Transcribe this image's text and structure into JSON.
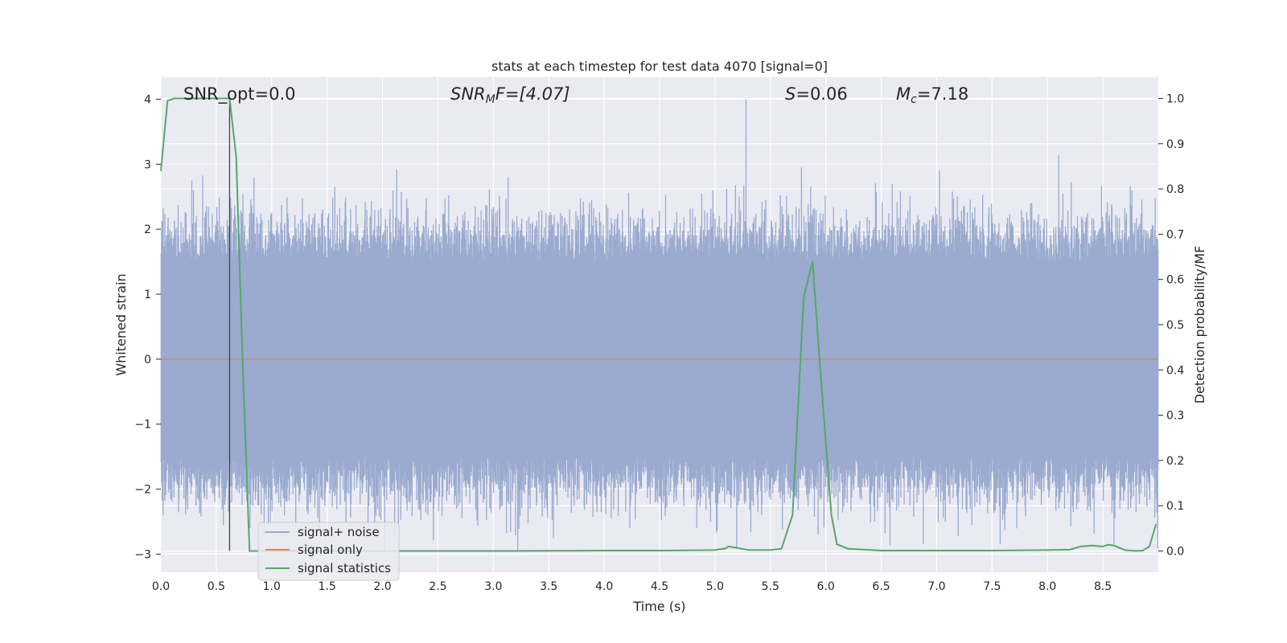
{
  "chart_data": {
    "type": "line",
    "title": "stats at each timestep for test data 4070 [signal=0]",
    "xlabel": "Time (s)",
    "ylabel": "Whitened strain",
    "y2label": "Detection probability/MF",
    "xlim": [
      0.0,
      9.0
    ],
    "ylim": [
      -3.28,
      4.34
    ],
    "y2lim": [
      -0.047,
      1.047
    ],
    "x_ticks": [
      0.0,
      0.5,
      1.0,
      1.5,
      2.0,
      2.5,
      3.0,
      3.5,
      4.0,
      4.5,
      5.0,
      5.5,
      6.0,
      6.5,
      7.0,
      7.5,
      8.0,
      8.5
    ],
    "x_tick_labels": [
      "0.0",
      "0.5",
      "1.0",
      "1.5",
      "2.0",
      "2.5",
      "3.0",
      "3.5",
      "4.0",
      "4.5",
      "5.0",
      "5.5",
      "6.0",
      "6.5",
      "7.0",
      "7.5",
      "8.0",
      "8.5"
    ],
    "y_ticks": [
      -3,
      -2,
      -1,
      0,
      1,
      2,
      3,
      4
    ],
    "y_tick_labels": [
      "−3",
      "−2",
      "−1",
      "0",
      "1",
      "2",
      "3",
      "4"
    ],
    "y2_ticks": [
      0.0,
      0.1,
      0.2,
      0.3,
      0.4,
      0.5,
      0.6,
      0.7,
      0.8,
      0.9,
      1.0
    ],
    "y2_tick_labels": [
      "0.0",
      "0.1",
      "0.2",
      "0.3",
      "0.4",
      "0.5",
      "0.6",
      "0.7",
      "0.8",
      "0.9",
      "1.0"
    ],
    "grid": true,
    "legend_position": "lower-left",
    "annotations": {
      "snr_opt": "SNR_opt=0.0",
      "snr_mf_sym": "SNR",
      "snr_mf_sub": "M",
      "snr_mf_rest": "F=[4.07]",
      "s_sym": "S",
      "s_rest": "=0.06",
      "mc_sym": "M",
      "mc_sub": "c",
      "mc_rest": "=7.18"
    },
    "marker_line_x": 0.62,
    "series": [
      {
        "name": "signal+ noise",
        "color": "#9aabcf",
        "envelope_typical": 1.5,
        "notable_spikes": [
          {
            "x": 0.61,
            "y": -2.35
          },
          {
            "x": 0.62,
            "y": 0.8
          },
          {
            "x": 0.84,
            "y": 2.8
          },
          {
            "x": 3.22,
            "y": -2.95
          },
          {
            "x": 4.98,
            "y": 2.6
          },
          {
            "x": 5.28,
            "y": 4.0
          },
          {
            "x": 5.78,
            "y": 2.95
          },
          {
            "x": 6.6,
            "y": 2.7
          },
          {
            "x": 6.88,
            "y": -2.85
          },
          {
            "x": 8.6,
            "y": -2.85
          }
        ]
      },
      {
        "name": "signal only",
        "color": "#dd8452",
        "x": [
          0.0,
          9.0
        ],
        "y": [
          0.0,
          0.0
        ]
      },
      {
        "name": "signal statistics",
        "color": "#55a868",
        "axis": "right",
        "x": [
          0.0,
          0.06,
          0.12,
          0.2,
          0.3,
          0.4,
          0.5,
          0.6,
          0.62,
          0.68,
          0.74,
          0.8,
          1.0,
          2.0,
          3.0,
          4.0,
          4.5,
          5.0,
          5.1,
          5.12,
          5.2,
          5.3,
          5.5,
          5.6,
          5.7,
          5.8,
          5.88,
          5.95,
          6.05,
          6.1,
          6.2,
          6.5,
          7.0,
          7.5,
          8.0,
          8.2,
          8.3,
          8.4,
          8.5,
          8.55,
          8.6,
          8.7,
          8.8,
          8.86,
          8.92,
          8.98
        ],
        "y": [
          0.84,
          0.995,
          1.0,
          1.0,
          1.0,
          1.0,
          1.0,
          1.0,
          1.0,
          0.87,
          0.4,
          0.0,
          0.0,
          0.0,
          0.0,
          0.001,
          0.001,
          0.002,
          0.006,
          0.01,
          0.007,
          0.002,
          0.002,
          0.005,
          0.08,
          0.56,
          0.64,
          0.4,
          0.08,
          0.015,
          0.005,
          0.001,
          0.001,
          0.001,
          0.002,
          0.003,
          0.01,
          0.012,
          0.01,
          0.014,
          0.012,
          0.002,
          0.0,
          0.001,
          0.01,
          0.06
        ]
      }
    ]
  }
}
